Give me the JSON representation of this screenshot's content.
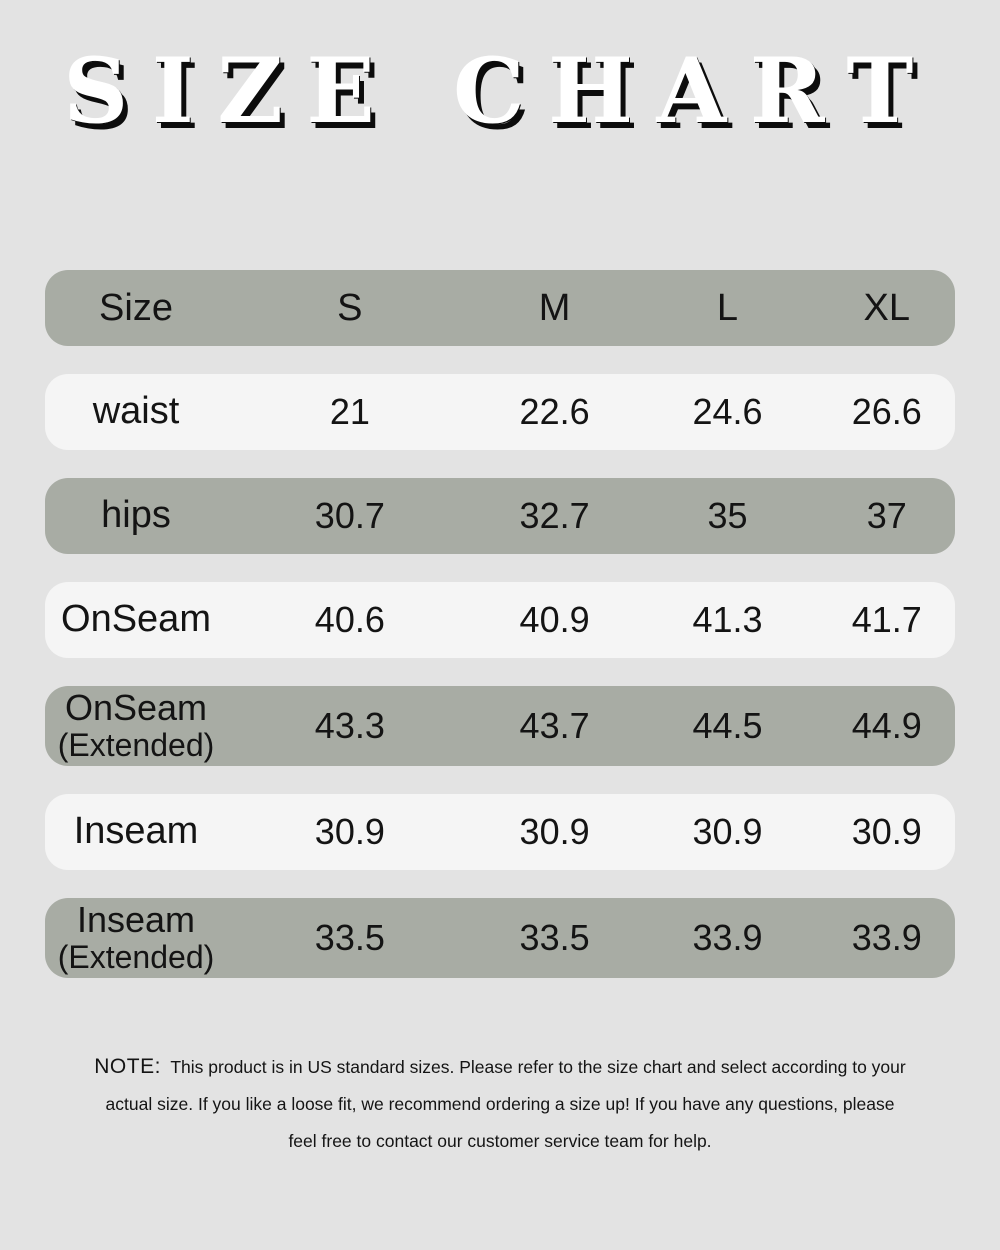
{
  "page": {
    "title": "SIZE CHART",
    "background_color": "#e3e3e3"
  },
  "colors": {
    "sage_row": "#a8aca4",
    "light_row": "#f5f5f5",
    "text": "#141414",
    "title_fill": "#ffffff",
    "title_shadow": "#0c0c0c"
  },
  "size_chart": {
    "header": {
      "label": "Size",
      "columns": [
        "S",
        "M",
        "L",
        "XL"
      ]
    },
    "rows": [
      {
        "label": "waist",
        "sublabel": "",
        "values": [
          "21",
          "22.6",
          "24.6",
          "26.6"
        ]
      },
      {
        "label": "hips",
        "sublabel": "",
        "values": [
          "30.7",
          "32.7",
          "35",
          "37"
        ]
      },
      {
        "label": "OnSeam",
        "sublabel": "",
        "values": [
          "40.6",
          "40.9",
          "41.3",
          "41.7"
        ]
      },
      {
        "label": "OnSeam",
        "sublabel": "(Extended)",
        "values": [
          "43.3",
          "43.7",
          "44.5",
          "44.9"
        ]
      },
      {
        "label": "Inseam",
        "sublabel": "",
        "values": [
          "30.9",
          "30.9",
          "30.9",
          "30.9"
        ]
      },
      {
        "label": "Inseam",
        "sublabel": "(Extended)",
        "values": [
          "33.5",
          "33.5",
          "33.9",
          "33.9"
        ]
      }
    ]
  },
  "note": {
    "label": "NOTE:",
    "lines": [
      "This product is in US standard sizes. Please refer to the size chart and select according to your",
      "actual size. If you like a loose fit, we  recommend ordering a size up! If you have any questions, please",
      "feel free to contact our customer service team for help."
    ]
  },
  "chart_data": {
    "type": "table",
    "title": "SIZE CHART",
    "columns": [
      "Size",
      "S",
      "M",
      "L",
      "XL"
    ],
    "rows": [
      [
        "waist",
        21,
        22.6,
        24.6,
        26.6
      ],
      [
        "hips",
        30.7,
        32.7,
        35,
        37
      ],
      [
        "OnSeam",
        40.6,
        40.9,
        41.3,
        41.7
      ],
      [
        "OnSeam (Extended)",
        43.3,
        43.7,
        44.5,
        44.9
      ],
      [
        "Inseam",
        30.9,
        30.9,
        30.9,
        30.9
      ],
      [
        "Inseam (Extended)",
        33.5,
        33.5,
        33.9,
        33.9
      ]
    ],
    "units": "inches (implied)",
    "note": "US standard sizes"
  }
}
